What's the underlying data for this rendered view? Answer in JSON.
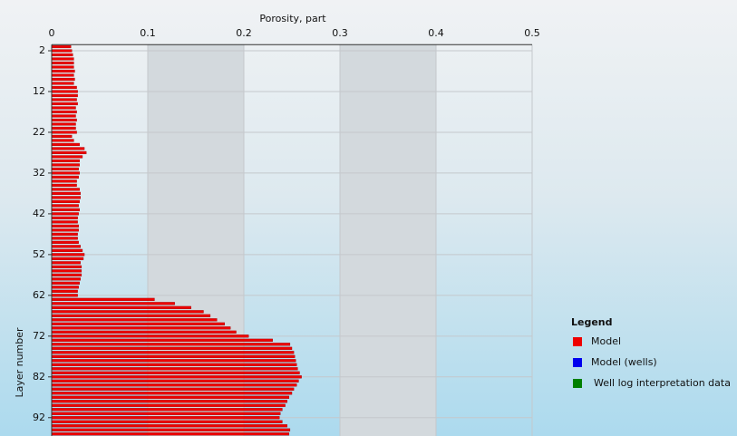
{
  "chart_data": {
    "type": "hbar",
    "xlabel": "Porosity, part",
    "ylabel": "Layer number",
    "xlim": [
      0,
      0.5
    ],
    "xticks": [
      0,
      0.1,
      0.2,
      0.3,
      0.4,
      0.5
    ],
    "ylim": [
      0.5,
      96.5
    ],
    "yticks": [
      2,
      12,
      22,
      32,
      42,
      52,
      62,
      72,
      82,
      92
    ],
    "y_inverted": true,
    "grid": true,
    "alternate_bands": true,
    "band_color": "#d3d9dd",
    "y": [
      1,
      2,
      3,
      4,
      5,
      6,
      7,
      8,
      9,
      10,
      11,
      12,
      13,
      14,
      15,
      16,
      17,
      18,
      19,
      20,
      21,
      22,
      23,
      24,
      25,
      26,
      27,
      28,
      29,
      30,
      31,
      32,
      33,
      34,
      35,
      36,
      37,
      38,
      39,
      40,
      41,
      42,
      43,
      44,
      45,
      46,
      47,
      48,
      49,
      50,
      51,
      52,
      53,
      54,
      55,
      56,
      57,
      58,
      59,
      60,
      61,
      62,
      63,
      64,
      65,
      66,
      67,
      68,
      69,
      70,
      71,
      72,
      73,
      74,
      75,
      76,
      77,
      78,
      79,
      80,
      81,
      82,
      83,
      84,
      85,
      86,
      87,
      88,
      89,
      90,
      91,
      92,
      93,
      94,
      95,
      96
    ],
    "series": [
      {
        "name": "Model",
        "color": "#ee0000",
        "values": [
          0.02,
          0.021,
          0.022,
          0.023,
          0.023,
          0.023,
          0.024,
          0.023,
          0.024,
          0.023,
          0.026,
          0.027,
          0.027,
          0.026,
          0.027,
          0.025,
          0.026,
          0.025,
          0.026,
          0.025,
          0.025,
          0.026,
          0.021,
          0.023,
          0.029,
          0.034,
          0.036,
          0.032,
          0.029,
          0.029,
          0.028,
          0.029,
          0.028,
          0.026,
          0.026,
          0.029,
          0.03,
          0.03,
          0.029,
          0.028,
          0.029,
          0.028,
          0.027,
          0.027,
          0.028,
          0.028,
          0.027,
          0.027,
          0.028,
          0.03,
          0.032,
          0.034,
          0.033,
          0.03,
          0.031,
          0.031,
          0.031,
          0.03,
          0.029,
          0.028,
          0.027,
          0.027,
          0.107,
          0.128,
          0.145,
          0.158,
          0.165,
          0.172,
          0.18,
          0.186,
          0.192,
          0.205,
          0.23,
          0.248,
          0.25,
          0.252,
          0.253,
          0.254,
          0.255,
          0.256,
          0.258,
          0.26,
          0.257,
          0.255,
          0.252,
          0.25,
          0.247,
          0.245,
          0.243,
          0.24,
          0.238,
          0.237,
          0.24,
          0.245,
          0.248,
          0.247
        ]
      },
      {
        "name": "Model (wells)",
        "color": "#0000ee",
        "values": []
      },
      {
        "name": "Well log interpretation data",
        "color": "#008000",
        "values": []
      }
    ],
    "legend": {
      "title": "Legend",
      "position": "right"
    }
  }
}
